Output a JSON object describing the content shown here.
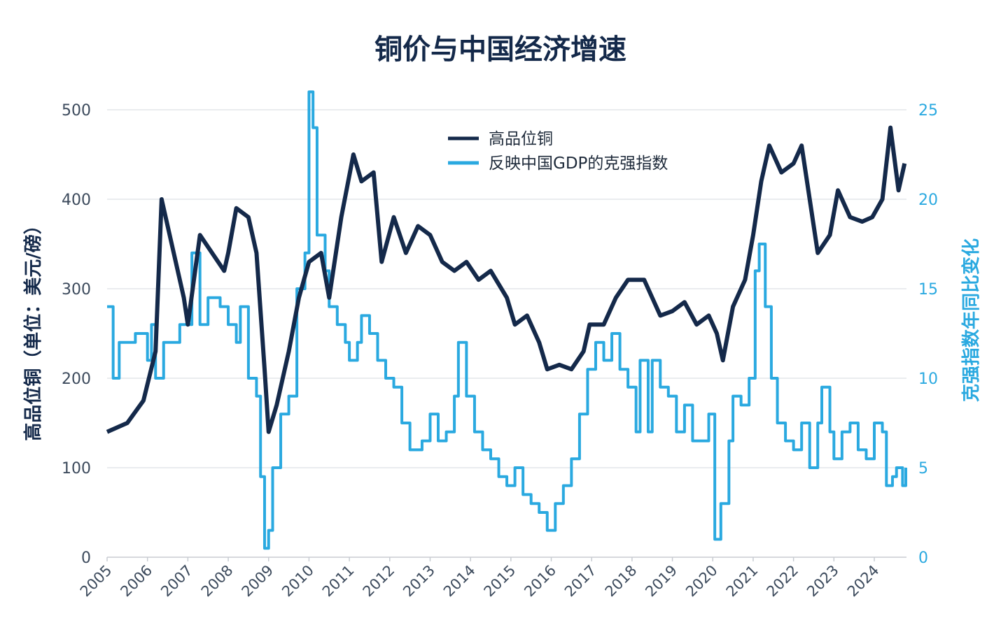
{
  "chart_data": {
    "type": "line",
    "title": "铜价与中国经济增速",
    "ylabel": "高品位铜（单位：美元/磅）",
    "y2label": "克强指数年同比变化",
    "ylim": [
      0,
      500
    ],
    "y2lim": [
      0,
      25
    ],
    "yticks": [
      "0",
      "100",
      "200",
      "300",
      "400",
      "500"
    ],
    "y2ticks": [
      "0",
      "5",
      "10",
      "15",
      "20",
      "25"
    ],
    "xticks": [
      "2005",
      "2006",
      "2007",
      "2008",
      "2009",
      "2010",
      "2011",
      "2012",
      "2013",
      "2014",
      "2015",
      "2016",
      "2017",
      "2018",
      "2019",
      "2020",
      "2021",
      "2022",
      "2023",
      "2024"
    ],
    "grid": true,
    "legend_position": "top-center",
    "colors": {
      "copper": "#14294a",
      "keqiang": "#2aa9e0",
      "title": "#14294a"
    },
    "series": [
      {
        "name": "高品位铜",
        "axis": "left",
        "points": [
          [
            2005,
            140
          ],
          [
            2005.5,
            150
          ],
          [
            2005.9,
            175
          ],
          [
            2006.2,
            230
          ],
          [
            2006.35,
            400
          ],
          [
            2006.6,
            350
          ],
          [
            2006.9,
            290
          ],
          [
            2007.0,
            260
          ],
          [
            2007.3,
            360
          ],
          [
            2007.6,
            340
          ],
          [
            2007.9,
            320
          ],
          [
            2008.0,
            340
          ],
          [
            2008.2,
            390
          ],
          [
            2008.5,
            380
          ],
          [
            2008.7,
            340
          ],
          [
            2008.9,
            210
          ],
          [
            2009.0,
            140
          ],
          [
            2009.2,
            170
          ],
          [
            2009.5,
            230
          ],
          [
            2009.75,
            290
          ],
          [
            2010.0,
            330
          ],
          [
            2010.3,
            340
          ],
          [
            2010.5,
            290
          ],
          [
            2010.8,
            380
          ],
          [
            2011.1,
            450
          ],
          [
            2011.3,
            420
          ],
          [
            2011.6,
            430
          ],
          [
            2011.8,
            330
          ],
          [
            2012.1,
            380
          ],
          [
            2012.4,
            340
          ],
          [
            2012.7,
            370
          ],
          [
            2013.0,
            360
          ],
          [
            2013.3,
            330
          ],
          [
            2013.6,
            320
          ],
          [
            2013.9,
            330
          ],
          [
            2014.2,
            310
          ],
          [
            2014.5,
            320
          ],
          [
            2014.9,
            290
          ],
          [
            2015.1,
            260
          ],
          [
            2015.4,
            270
          ],
          [
            2015.7,
            240
          ],
          [
            2015.9,
            210
          ],
          [
            2016.2,
            215
          ],
          [
            2016.5,
            210
          ],
          [
            2016.8,
            230
          ],
          [
            2016.95,
            260
          ],
          [
            2017.3,
            260
          ],
          [
            2017.6,
            290
          ],
          [
            2017.9,
            310
          ],
          [
            2018.3,
            310
          ],
          [
            2018.5,
            290
          ],
          [
            2018.7,
            270
          ],
          [
            2019.0,
            275
          ],
          [
            2019.3,
            285
          ],
          [
            2019.6,
            260
          ],
          [
            2019.9,
            270
          ],
          [
            2020.1,
            250
          ],
          [
            2020.25,
            220
          ],
          [
            2020.5,
            280
          ],
          [
            2020.8,
            310
          ],
          [
            2021.0,
            360
          ],
          [
            2021.2,
            420
          ],
          [
            2021.4,
            460
          ],
          [
            2021.7,
            430
          ],
          [
            2022.0,
            440
          ],
          [
            2022.2,
            460
          ],
          [
            2022.4,
            400
          ],
          [
            2022.6,
            340
          ],
          [
            2022.9,
            360
          ],
          [
            2023.1,
            410
          ],
          [
            2023.4,
            380
          ],
          [
            2023.7,
            375
          ],
          [
            2023.95,
            380
          ],
          [
            2024.2,
            400
          ],
          [
            2024.4,
            480
          ],
          [
            2024.6,
            410
          ],
          [
            2024.75,
            440
          ]
        ]
      },
      {
        "name": "反映中国GDP的克强指数",
        "axis": "right",
        "step": true,
        "points": [
          [
            2005,
            14
          ],
          [
            2005.15,
            10
          ],
          [
            2005.3,
            12
          ],
          [
            2005.7,
            12.5
          ],
          [
            2006.0,
            11
          ],
          [
            2006.1,
            13
          ],
          [
            2006.2,
            10
          ],
          [
            2006.4,
            12
          ],
          [
            2006.8,
            13
          ],
          [
            2007.0,
            13
          ],
          [
            2007.1,
            17
          ],
          [
            2007.3,
            13
          ],
          [
            2007.5,
            14.5
          ],
          [
            2007.8,
            14
          ],
          [
            2008.0,
            13
          ],
          [
            2008.2,
            12
          ],
          [
            2008.3,
            14
          ],
          [
            2008.5,
            10
          ],
          [
            2008.7,
            9
          ],
          [
            2008.8,
            4.5
          ],
          [
            2008.9,
            0.5
          ],
          [
            2009.0,
            1.5
          ],
          [
            2009.1,
            5
          ],
          [
            2009.3,
            8
          ],
          [
            2009.5,
            9
          ],
          [
            2009.7,
            15
          ],
          [
            2009.9,
            17
          ],
          [
            2010.0,
            26
          ],
          [
            2010.1,
            24
          ],
          [
            2010.2,
            18
          ],
          [
            2010.4,
            16
          ],
          [
            2010.5,
            14
          ],
          [
            2010.7,
            13
          ],
          [
            2010.9,
            12
          ],
          [
            2011.0,
            11
          ],
          [
            2011.2,
            12
          ],
          [
            2011.3,
            13.5
          ],
          [
            2011.5,
            12.5
          ],
          [
            2011.7,
            11
          ],
          [
            2011.9,
            10
          ],
          [
            2012.1,
            9.5
          ],
          [
            2012.3,
            7.5
          ],
          [
            2012.5,
            6
          ],
          [
            2012.8,
            6.5
          ],
          [
            2013.0,
            8
          ],
          [
            2013.2,
            6.5
          ],
          [
            2013.4,
            7
          ],
          [
            2013.6,
            9
          ],
          [
            2013.7,
            12
          ],
          [
            2013.9,
            9
          ],
          [
            2014.1,
            7
          ],
          [
            2014.3,
            6
          ],
          [
            2014.5,
            5.5
          ],
          [
            2014.7,
            4.5
          ],
          [
            2014.9,
            4
          ],
          [
            2015.1,
            5
          ],
          [
            2015.3,
            3.5
          ],
          [
            2015.5,
            3
          ],
          [
            2015.7,
            2.5
          ],
          [
            2015.9,
            1.5
          ],
          [
            2016.1,
            3
          ],
          [
            2016.3,
            4
          ],
          [
            2016.5,
            5.5
          ],
          [
            2016.7,
            8
          ],
          [
            2016.9,
            10.5
          ],
          [
            2017.1,
            12
          ],
          [
            2017.3,
            11
          ],
          [
            2017.5,
            12.5
          ],
          [
            2017.7,
            10.5
          ],
          [
            2017.9,
            9.5
          ],
          [
            2018.1,
            7
          ],
          [
            2018.2,
            11
          ],
          [
            2018.4,
            7
          ],
          [
            2018.5,
            11
          ],
          [
            2018.7,
            9.5
          ],
          [
            2018.9,
            9
          ],
          [
            2019.1,
            7
          ],
          [
            2019.3,
            8.5
          ],
          [
            2019.5,
            6.5
          ],
          [
            2019.7,
            6.5
          ],
          [
            2019.9,
            8
          ],
          [
            2020.05,
            1
          ],
          [
            2020.2,
            3
          ],
          [
            2020.4,
            6.5
          ],
          [
            2020.5,
            9
          ],
          [
            2020.7,
            8.5
          ],
          [
            2020.9,
            10
          ],
          [
            2021.05,
            16
          ],
          [
            2021.15,
            17.5
          ],
          [
            2021.3,
            14
          ],
          [
            2021.45,
            10
          ],
          [
            2021.6,
            7.5
          ],
          [
            2021.8,
            6.5
          ],
          [
            2022.0,
            6
          ],
          [
            2022.2,
            7.5
          ],
          [
            2022.4,
            5
          ],
          [
            2022.6,
            7.5
          ],
          [
            2022.7,
            9.5
          ],
          [
            2022.9,
            7
          ],
          [
            2023.0,
            5.5
          ],
          [
            2023.2,
            7
          ],
          [
            2023.4,
            7.5
          ],
          [
            2023.6,
            6
          ],
          [
            2023.8,
            5.5
          ],
          [
            2024.0,
            7.5
          ],
          [
            2024.2,
            7
          ],
          [
            2024.3,
            4
          ],
          [
            2024.45,
            4.5
          ],
          [
            2024.55,
            5
          ],
          [
            2024.7,
            4
          ],
          [
            2024.78,
            5
          ]
        ]
      }
    ]
  }
}
